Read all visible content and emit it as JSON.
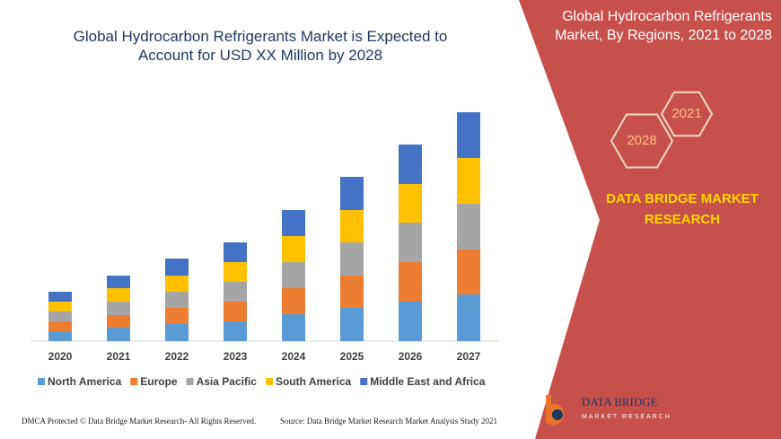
{
  "chart_data": {
    "type": "bar",
    "stacked": true,
    "title": "Global Hydrocarbon Refrigerants Market is Expected to Account for USD XX Million by 2028",
    "categories": [
      "2020",
      "2021",
      "2022",
      "2023",
      "2024",
      "2025",
      "2026",
      "2027"
    ],
    "series": [
      {
        "name": "North America",
        "color": "#5b9bd5",
        "values": [
          11,
          15,
          19,
          22,
          30,
          37,
          44,
          52
        ]
      },
      {
        "name": "Europe",
        "color": "#ed7d31",
        "values": [
          11,
          14,
          18,
          22,
          29,
          36,
          44,
          50
        ]
      },
      {
        "name": "Asia Pacific",
        "color": "#a5a5a5",
        "values": [
          11,
          15,
          18,
          22,
          29,
          37,
          44,
          51
        ]
      },
      {
        "name": "South America",
        "color": "#ffc000",
        "values": [
          11,
          15,
          18,
          22,
          29,
          36,
          43,
          51
        ]
      },
      {
        "name": "Middle East and Africa",
        "color": "#4472c4",
        "values": [
          11,
          14,
          19,
          22,
          29,
          37,
          44,
          51
        ]
      }
    ]
  },
  "panel": {
    "title": "Global Hydrocarbon Refrigerants Market, By Regions, 2021 to 2028",
    "hexagons": [
      "2021",
      "2028"
    ],
    "brand": "DATA BRIDGE MARKET RESEARCH"
  },
  "logo": {
    "name": "DATA BRIDGE",
    "tagline": "MARKET RESEARCH"
  },
  "footer": {
    "left": "DMCA Protected © Data Bridge Market Research- All Rights Reserved.",
    "right": "Source: Data Bridge Market Research Market Analysis Study 2021"
  }
}
